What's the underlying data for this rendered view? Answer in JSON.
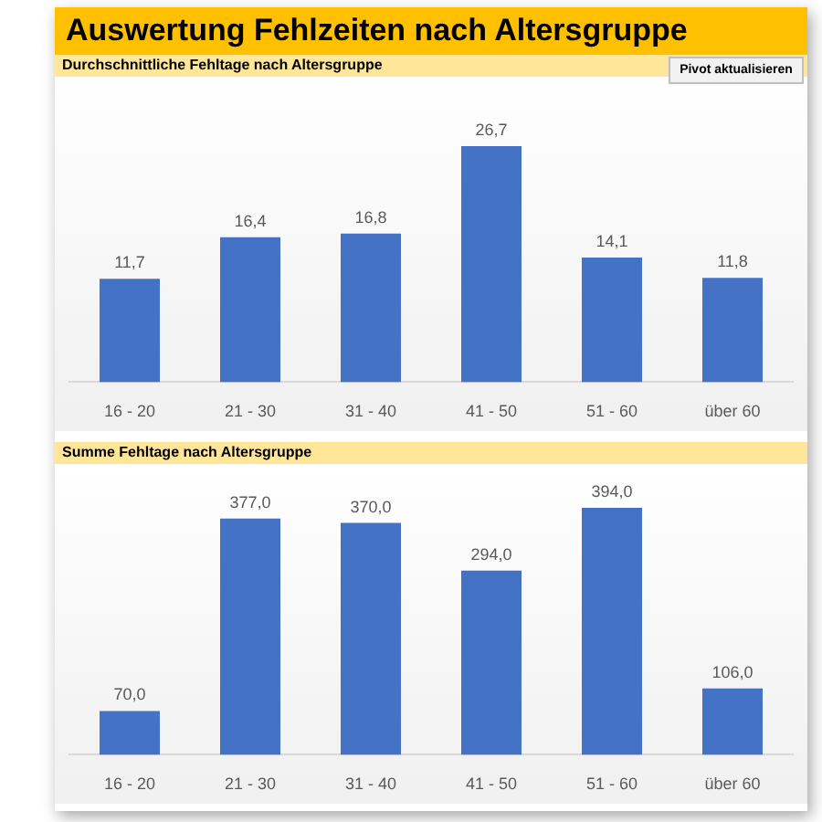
{
  "chart_data": [
    {
      "type": "bar",
      "title": "Auswertung Fehlzeiten nach Altersgruppe",
      "subtitle": "Durchschnittliche Fehltage nach Altersgruppe",
      "annotations": [
        "Pivot aktualisieren"
      ],
      "categories": [
        "16 - 20",
        "21 - 30",
        "31 - 40",
        "41 - 50",
        "51 - 60",
        "über 60"
      ],
      "values": [
        11.7,
        16.4,
        16.8,
        26.7,
        14.1,
        11.8
      ],
      "value_labels": [
        "11,7",
        "16,4",
        "16,8",
        "26,7",
        "14,1",
        "11,8"
      ],
      "color": "#4472c4",
      "tick_labels": "x"
    },
    {
      "type": "bar",
      "title": "Summe Fehltage nach Altersgruppe",
      "categories": [
        "16 - 20",
        "21 - 30",
        "31 - 40",
        "41 - 50",
        "51 - 60",
        "über 60"
      ],
      "values": [
        70,
        377,
        370,
        294,
        394,
        106
      ],
      "value_labels": [
        "70,0",
        "377,0",
        "370,0",
        "294,0",
        "394,0",
        "106,0"
      ],
      "color": "#4472c4",
      "tick_labels": "x"
    }
  ]
}
